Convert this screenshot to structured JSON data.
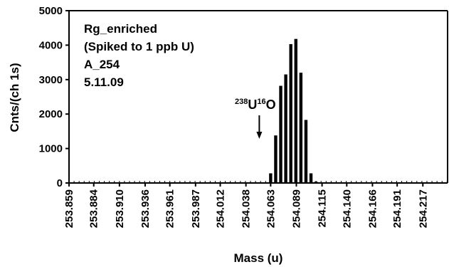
{
  "chart_data": {
    "type": "bar",
    "title": "",
    "xlabel": "Mass (u)",
    "ylabel": "Cnts/(ch 1s)",
    "ylim": [
      0,
      5000
    ],
    "yticks": [
      0,
      1000,
      2000,
      3000,
      4000,
      5000
    ],
    "xlim": [
      253.859,
      254.242
    ],
    "xticks": [
      "253.859",
      "253.884",
      "253.910",
      "253.936",
      "253.961",
      "253.987",
      "254.012",
      "254.038",
      "254.063",
      "254.089",
      "254.115",
      "254.140",
      "254.166",
      "254.191",
      "254.217"
    ],
    "grid": false,
    "legend": "none",
    "bar_color": "#000000",
    "annotation_lines": [
      "Rg_enriched",
      "(Spiked to 1 ppb U)",
      "A_254",
      "5.11.09"
    ],
    "marker_label": {
      "isotope_mass": "238",
      "element": "U",
      "oxygen_mass": "16",
      "oxygen": "O"
    },
    "marker_x": 254.0515,
    "series": [
      {
        "x": [
          253.859,
          253.8641,
          253.8692,
          253.8743,
          253.8794,
          253.8845,
          253.8896,
          253.8947,
          253.8998,
          253.9049,
          253.91,
          253.9151,
          253.9202,
          253.9253,
          253.9304,
          253.9355,
          253.9406,
          253.9457,
          253.9508,
          253.9559,
          253.961,
          253.9661,
          253.9712,
          253.9763,
          253.9814,
          253.9865,
          253.9916,
          253.9967,
          254.0018,
          254.0069,
          254.012,
          254.0171,
          254.0222,
          254.0273,
          254.0324,
          254.0375,
          254.0426,
          254.0477,
          254.0528,
          254.0579,
          254.063,
          254.0681,
          254.0732,
          254.0783,
          254.0834,
          254.0885,
          254.0936,
          254.0987,
          254.1038,
          254.1089,
          254.114,
          254.1191,
          254.1242,
          254.1293,
          254.1344,
          254.1395,
          254.1446,
          254.1497,
          254.1548,
          254.1599,
          254.165,
          254.1701,
          254.1752,
          254.1803,
          254.1854,
          254.1905,
          254.1956,
          254.2007,
          254.2058,
          254.2109,
          254.216,
          254.2211,
          254.2262,
          254.2313,
          254.2364,
          254.2415
        ],
        "values": [
          0,
          0,
          0,
          0,
          0,
          0,
          0,
          0,
          0,
          0,
          0,
          0,
          0,
          0,
          0,
          0,
          0,
          0,
          0,
          0,
          0,
          0,
          0,
          0,
          0,
          0,
          0,
          0,
          0,
          0,
          0,
          0,
          0,
          0,
          0,
          0,
          0,
          0,
          0,
          0,
          280,
          1380,
          2820,
          3150,
          4030,
          4180,
          3200,
          1830,
          280,
          40,
          0,
          0,
          0,
          0,
          0,
          0,
          0,
          0,
          0,
          0,
          0,
          0,
          0,
          0,
          0,
          0,
          0,
          0,
          0,
          0,
          0,
          0,
          0,
          0,
          0,
          0
        ]
      }
    ]
  }
}
